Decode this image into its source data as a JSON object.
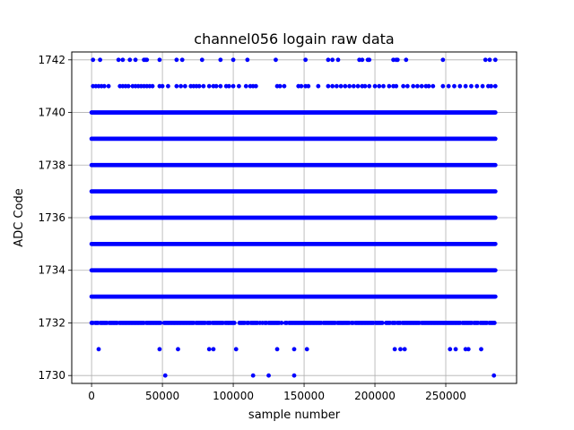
{
  "chart_data": {
    "type": "scatter",
    "title": "channel056 logain raw data",
    "xlabel": "sample number",
    "ylabel": "ADC Code",
    "xlim": [
      -14000,
      300000
    ],
    "ylim": [
      1729.7,
      1742.3
    ],
    "xticks": [
      0,
      50000,
      100000,
      150000,
      200000,
      250000
    ],
    "yticks": [
      1730,
      1732,
      1734,
      1736,
      1738,
      1740,
      1742
    ],
    "grid": true,
    "marker_color": "#0000ff",
    "dense_levels": {
      "codes": [
        1733,
        1734,
        1735,
        1736,
        1737,
        1738,
        1739,
        1740
      ],
      "x_range": [
        0,
        285000
      ]
    },
    "sparse_points": {
      "1742": [
        1000,
        6000,
        19000,
        22000,
        27000,
        31000,
        37000,
        38000,
        39000,
        48000,
        60000,
        64000,
        78000,
        91000,
        100000,
        110000,
        130000,
        151000,
        167000,
        170000,
        174000,
        189000,
        191000,
        195000,
        196000,
        213000,
        215000,
        216000,
        222000,
        248000,
        278000,
        281000,
        285000
      ],
      "1741": [
        1000,
        3000,
        5000,
        7000,
        9000,
        12000,
        20000,
        22000,
        24000,
        26000,
        29000,
        31000,
        33000,
        35000,
        37000,
        39000,
        41000,
        43000,
        48000,
        50000,
        54000,
        60000,
        63000,
        66000,
        70000,
        72000,
        74000,
        76000,
        79000,
        83000,
        86000,
        88000,
        91000,
        95000,
        97000,
        100000,
        104000,
        109000,
        112000,
        114000,
        116000,
        131000,
        133000,
        136000,
        146000,
        148000,
        151000,
        153000,
        160000,
        167000,
        170000,
        173000,
        176000,
        179000,
        182000,
        185000,
        188000,
        191000,
        193000,
        196000,
        200000,
        203000,
        206000,
        210000,
        213000,
        215000,
        220000,
        223000,
        227000,
        230000,
        233000,
        236000,
        238000,
        241000,
        248000,
        252000,
        256000,
        260000,
        264000,
        268000,
        272000,
        276000,
        280000,
        282000,
        285000
      ],
      "1731": [
        5000,
        48000,
        61000,
        83000,
        86000,
        102000,
        131000,
        143000,
        152000,
        214000,
        218000,
        221000,
        253000,
        257000,
        264000,
        266000,
        275000
      ],
      "1730": [
        52000,
        114000,
        125000,
        143000,
        284000
      ]
    },
    "level_1732_x_range": [
      0,
      285000
    ]
  }
}
